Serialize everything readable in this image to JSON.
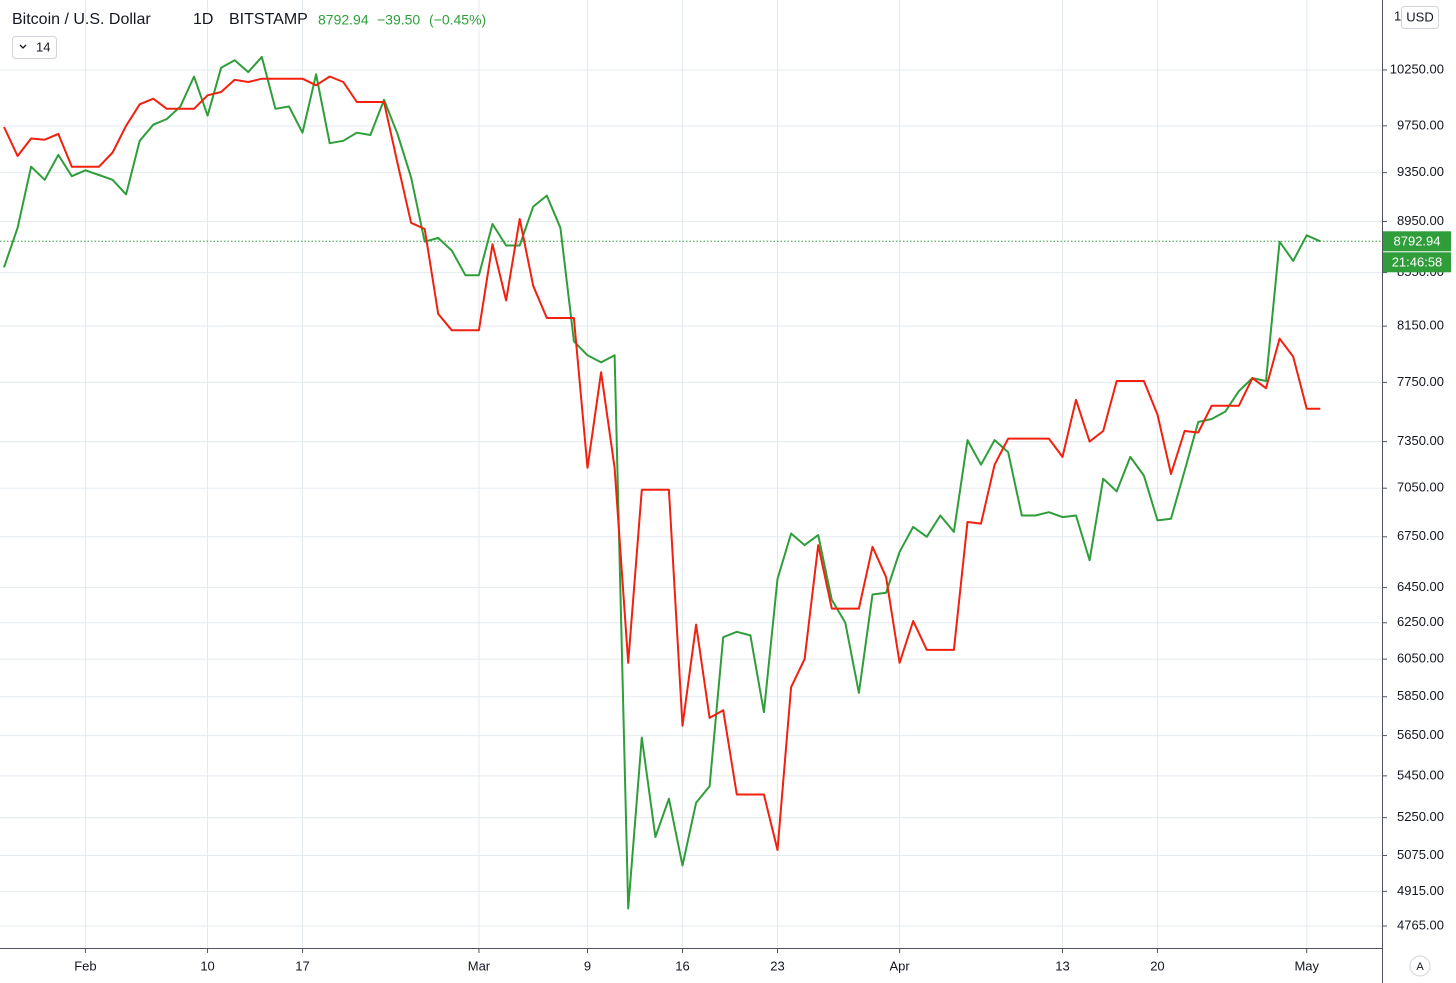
{
  "chart_data": {
    "type": "line",
    "title": "Bitcoin / U.S. Dollar",
    "interval": "1D",
    "exchange": "BITSTAMP",
    "change": "−39.50",
    "change_percent": "(−0.45%)",
    "indicator_input": "14",
    "currency": "USD",
    "scale_top_label": "1",
    "countdown": "21:46:58",
    "auto_scale_label": "A",
    "log_scale": true,
    "grid": true,
    "categories": [
      null,
      null,
      null,
      null,
      null,
      null,
      "Feb",
      null,
      null,
      null,
      null,
      null,
      null,
      null,
      null,
      "10",
      null,
      null,
      null,
      null,
      null,
      null,
      "17",
      null,
      null,
      null,
      null,
      null,
      null,
      null,
      null,
      null,
      null,
      null,
      null,
      "Mar",
      null,
      null,
      null,
      null,
      null,
      null,
      null,
      "9",
      null,
      null,
      null,
      null,
      null,
      null,
      "16",
      null,
      null,
      null,
      null,
      null,
      null,
      "23",
      null,
      null,
      null,
      null,
      null,
      null,
      null,
      null,
      "Apr",
      null,
      null,
      null,
      null,
      null,
      null,
      null,
      null,
      null,
      null,
      null,
      "13",
      null,
      null,
      null,
      null,
      null,
      null,
      "20",
      null,
      null,
      null,
      null,
      null,
      null,
      null,
      null,
      null,
      null,
      "May",
      null
    ],
    "series": [
      {
        "color": "#2f9e3a",
        "values": [
          8590,
          8900,
          9400,
          9290,
          9500,
          9320,
          9370,
          9330,
          9290,
          9170,
          9620,
          9760,
          9810,
          9920,
          10190,
          9840,
          10270,
          10340,
          10230,
          10370,
          9900,
          9920,
          9690,
          10210,
          9600,
          9620,
          9690,
          9670,
          9980,
          9680,
          9310,
          8790,
          8820,
          8720,
          8530,
          8530,
          8930,
          8760,
          8760,
          9070,
          9160,
          8900,
          8040,
          7940,
          7890,
          7940,
          4840,
          5640,
          5160,
          5340,
          5030,
          5320,
          5400,
          6170,
          6200,
          6180,
          5770,
          6500,
          6770,
          6700,
          6760,
          6380,
          6250,
          5870,
          6410,
          6420,
          6660,
          6810,
          6750,
          6880,
          6780,
          7360,
          7200,
          7360,
          7280,
          6880,
          6880,
          6900,
          6870,
          6880,
          6610,
          7110,
          7030,
          7250,
          7130,
          6850,
          6860,
          7160,
          7480,
          7500,
          7550,
          7690,
          7780,
          7760,
          8790,
          8640,
          8840,
          8792.94
        ]
      },
      {
        "color": "#f2200f",
        "values": [
          9740,
          9490,
          9640,
          9630,
          9680,
          9400,
          9400,
          9400,
          9520,
          9750,
          9940,
          9990,
          9900,
          9900,
          9900,
          10020,
          10050,
          10160,
          10140,
          10170,
          10170,
          10170,
          10170,
          10110,
          10190,
          10140,
          9960,
          9960,
          9960,
          9430,
          8940,
          8890,
          8240,
          8120,
          8120,
          8120,
          8770,
          8340,
          8970,
          8450,
          8210,
          8210,
          8210,
          7180,
          7820,
          7180,
          6030,
          7040,
          7040,
          7040,
          5700,
          6240,
          5740,
          5780,
          5360,
          5360,
          5360,
          5100,
          5900,
          6050,
          6700,
          6330,
          6330,
          6330,
          6690,
          6510,
          6030,
          6260,
          6100,
          6100,
          6100,
          6840,
          6830,
          7200,
          7370,
          7370,
          7370,
          7370,
          7250,
          7630,
          7350,
          7420,
          7760,
          7760,
          7760,
          7530,
          7140,
          7420,
          7410,
          7590,
          7590,
          7590,
          7780,
          7710,
          8060,
          7930,
          7570,
          7570
        ]
      }
    ],
    "ylim": [
      4672,
      10912
    ],
    "yticks": [
      {
        "value": 10250,
        "label": "10250.00"
      },
      {
        "value": 9750,
        "label": "9750.00"
      },
      {
        "value": 9350,
        "label": "9350.00"
      },
      {
        "value": 8950,
        "label": "8950.00"
      },
      {
        "value": 8550,
        "label": "8550.00"
      },
      {
        "value": 8150,
        "label": "8150.00"
      },
      {
        "value": 7750,
        "label": "7750.00"
      },
      {
        "value": 7350,
        "label": "7350.00"
      },
      {
        "value": 7050,
        "label": "7050.00"
      },
      {
        "value": 6750,
        "label": "6750.00"
      },
      {
        "value": 6450,
        "label": "6450.00"
      },
      {
        "value": 6250,
        "label": "6250.00"
      },
      {
        "value": 6050,
        "label": "6050.00"
      },
      {
        "value": 5850,
        "label": "5850.00"
      },
      {
        "value": 5650,
        "label": "5650.00"
      },
      {
        "value": 5450,
        "label": "5450.00"
      },
      {
        "value": 5250,
        "label": "5250.00"
      },
      {
        "value": 5075,
        "label": "5075.00"
      },
      {
        "value": 4915,
        "label": "4915.00"
      },
      {
        "value": 4765,
        "label": "4765.00"
      }
    ]
  }
}
